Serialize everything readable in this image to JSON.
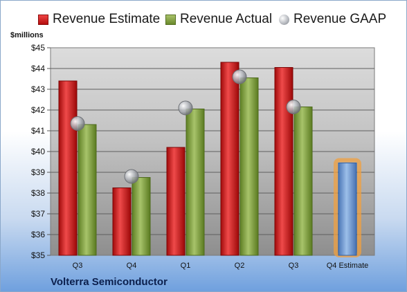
{
  "unit_label": "$millions",
  "company": "Volterra Semiconductor",
  "legend": {
    "estimate": "Revenue Estimate",
    "actual": "Revenue Actual",
    "gaap": "Revenue GAAP"
  },
  "colors": {
    "estimate": "#d42020",
    "actual": "#8aa84a",
    "gaap": "#b0b3b8",
    "estimate_forecast": "#6f9ad6",
    "highlight": "#f0a040"
  },
  "chart_data": {
    "type": "bar",
    "categories": [
      "Q3",
      "Q4",
      "Q1",
      "Q2",
      "Q3",
      "Q4 Estimate"
    ],
    "ylim": [
      35,
      45
    ],
    "yticks": [
      "$35",
      "$36",
      "$37",
      "$38",
      "$39",
      "$40",
      "$41",
      "$42",
      "$43",
      "$44",
      "$45"
    ],
    "ylabel": "$millions",
    "grid": true,
    "legend_position": "top",
    "series": [
      {
        "name": "Revenue Estimate",
        "values": [
          43.4,
          38.25,
          40.2,
          44.3,
          44.05,
          null
        ]
      },
      {
        "name": "Revenue Actual",
        "values": [
          41.3,
          38.75,
          42.05,
          43.55,
          42.15,
          null
        ]
      },
      {
        "name": "Revenue GAAP",
        "type": "marker",
        "values": [
          41.35,
          38.8,
          42.1,
          43.6,
          42.15,
          null
        ]
      }
    ],
    "forecast": {
      "category": "Q4 Estimate",
      "value": 39.45
    }
  }
}
